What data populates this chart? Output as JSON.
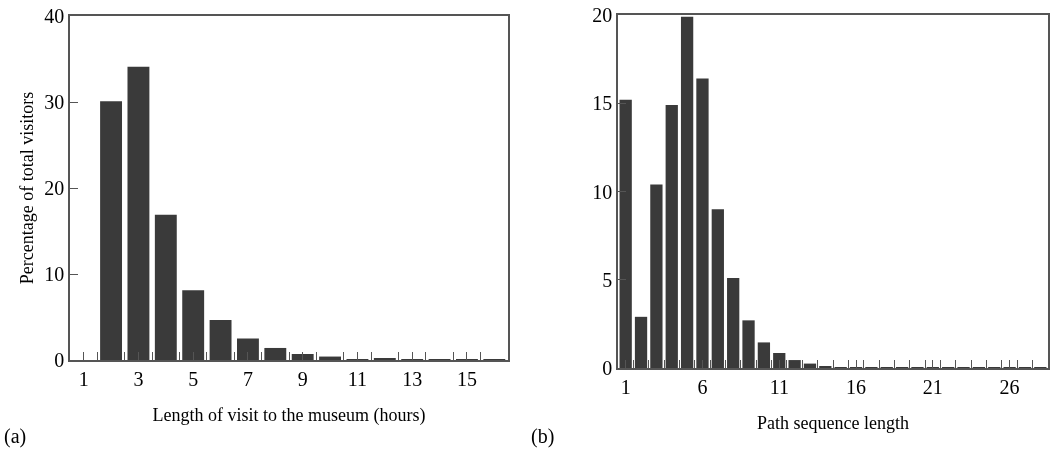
{
  "chart_data": [
    {
      "type": "bar",
      "xlabel": "Length of visit to the museum (hours)",
      "ylabel": "Percentage of total visitors",
      "annotations": [
        "(a)"
      ],
      "x": [
        1,
        2,
        3,
        4,
        5,
        6,
        7,
        8,
        9,
        10,
        11,
        12,
        13,
        14,
        15,
        16
      ],
      "values": [
        0,
        30.1,
        34.1,
        16.9,
        8.1,
        4.65,
        2.5,
        1.4,
        0.7,
        0.4,
        0.05,
        0.2,
        0.05,
        0.05,
        0.05,
        0.05
      ],
      "color": "#3a3a3a",
      "xlim": [
        0.5,
        16.5
      ],
      "xticks": [
        1,
        {
          "value": 1.5,
          "label": null
        },
        {
          "value": 2.5,
          "label": null
        },
        3,
        {
          "value": 3.5,
          "label": null
        },
        {
          "value": 4.5,
          "label": null
        },
        5,
        {
          "value": 5.5,
          "label": null
        },
        {
          "value": 6.5,
          "label": null
        },
        7,
        {
          "value": 7.5,
          "label": null
        },
        {
          "value": 8.5,
          "label": null
        },
        9,
        {
          "value": 9.5,
          "label": null
        },
        {
          "value": 10.5,
          "label": null
        },
        11,
        {
          "value": 11.5,
          "label": null
        },
        {
          "value": 12.5,
          "label": null
        },
        13,
        {
          "value": 13.5,
          "label": null
        },
        {
          "value": 14.5,
          "label": null
        },
        15,
        {
          "value": 15.5,
          "label": null
        }
      ],
      "ylim": [
        0,
        40
      ],
      "yticks": [
        0,
        10,
        20,
        30,
        40
      ],
      "grid": false
    },
    {
      "type": "bar",
      "xlabel": "Path sequence length",
      "annotations": [
        "(b)"
      ],
      "x": [
        1,
        2,
        3,
        4,
        5,
        6,
        7,
        8,
        9,
        10,
        11,
        12,
        13,
        14,
        15,
        16,
        17,
        18,
        19,
        20,
        21,
        22,
        23,
        24,
        25,
        26,
        27,
        28
      ],
      "values": [
        15.2,
        2.9,
        10.4,
        14.9,
        19.9,
        16.4,
        9.0,
        5.1,
        2.7,
        1.45,
        0.85,
        0.45,
        0.25,
        0.1,
        0.05,
        0.05,
        0.05,
        0.05,
        0.05,
        0.05,
        0.05,
        0.05,
        0.05,
        0.05,
        0.05,
        0.05,
        0.05,
        0.05
      ],
      "color": "#3a3a3a",
      "xlim": [
        0.5,
        28.5
      ],
      "xticks": [
        1,
        {
          "value": 1.5,
          "label": null
        },
        {
          "value": 2.5,
          "label": null
        },
        {
          "value": 3.5,
          "label": null
        },
        {
          "value": 4.5,
          "label": null
        },
        {
          "value": 5.5,
          "label": null
        },
        6,
        {
          "value": 6.5,
          "label": null
        },
        {
          "value": 7.5,
          "label": null
        },
        {
          "value": 8.5,
          "label": null
        },
        {
          "value": 9.5,
          "label": null
        },
        {
          "value": 10.5,
          "label": null
        },
        11,
        {
          "value": 11.5,
          "label": null
        },
        {
          "value": 12.5,
          "label": null
        },
        {
          "value": 13.5,
          "label": null
        },
        {
          "value": 14.5,
          "label": null
        },
        {
          "value": 15.5,
          "label": null
        },
        16,
        {
          "value": 16.5,
          "label": null
        },
        {
          "value": 17.5,
          "label": null
        },
        {
          "value": 18.5,
          "label": null
        },
        {
          "value": 19.5,
          "label": null
        },
        {
          "value": 20.5,
          "label": null
        },
        21,
        {
          "value": 21.5,
          "label": null
        },
        {
          "value": 22.5,
          "label": null
        },
        {
          "value": 23.5,
          "label": null
        },
        {
          "value": 24.5,
          "label": null
        },
        {
          "value": 25.5,
          "label": null
        },
        26,
        {
          "value": 26.5,
          "label": null
        },
        {
          "value": 27.5,
          "label": null
        }
      ],
      "ylim": [
        0,
        20
      ],
      "yticks": [
        0,
        5,
        10,
        15,
        20
      ],
      "grid": false
    }
  ]
}
